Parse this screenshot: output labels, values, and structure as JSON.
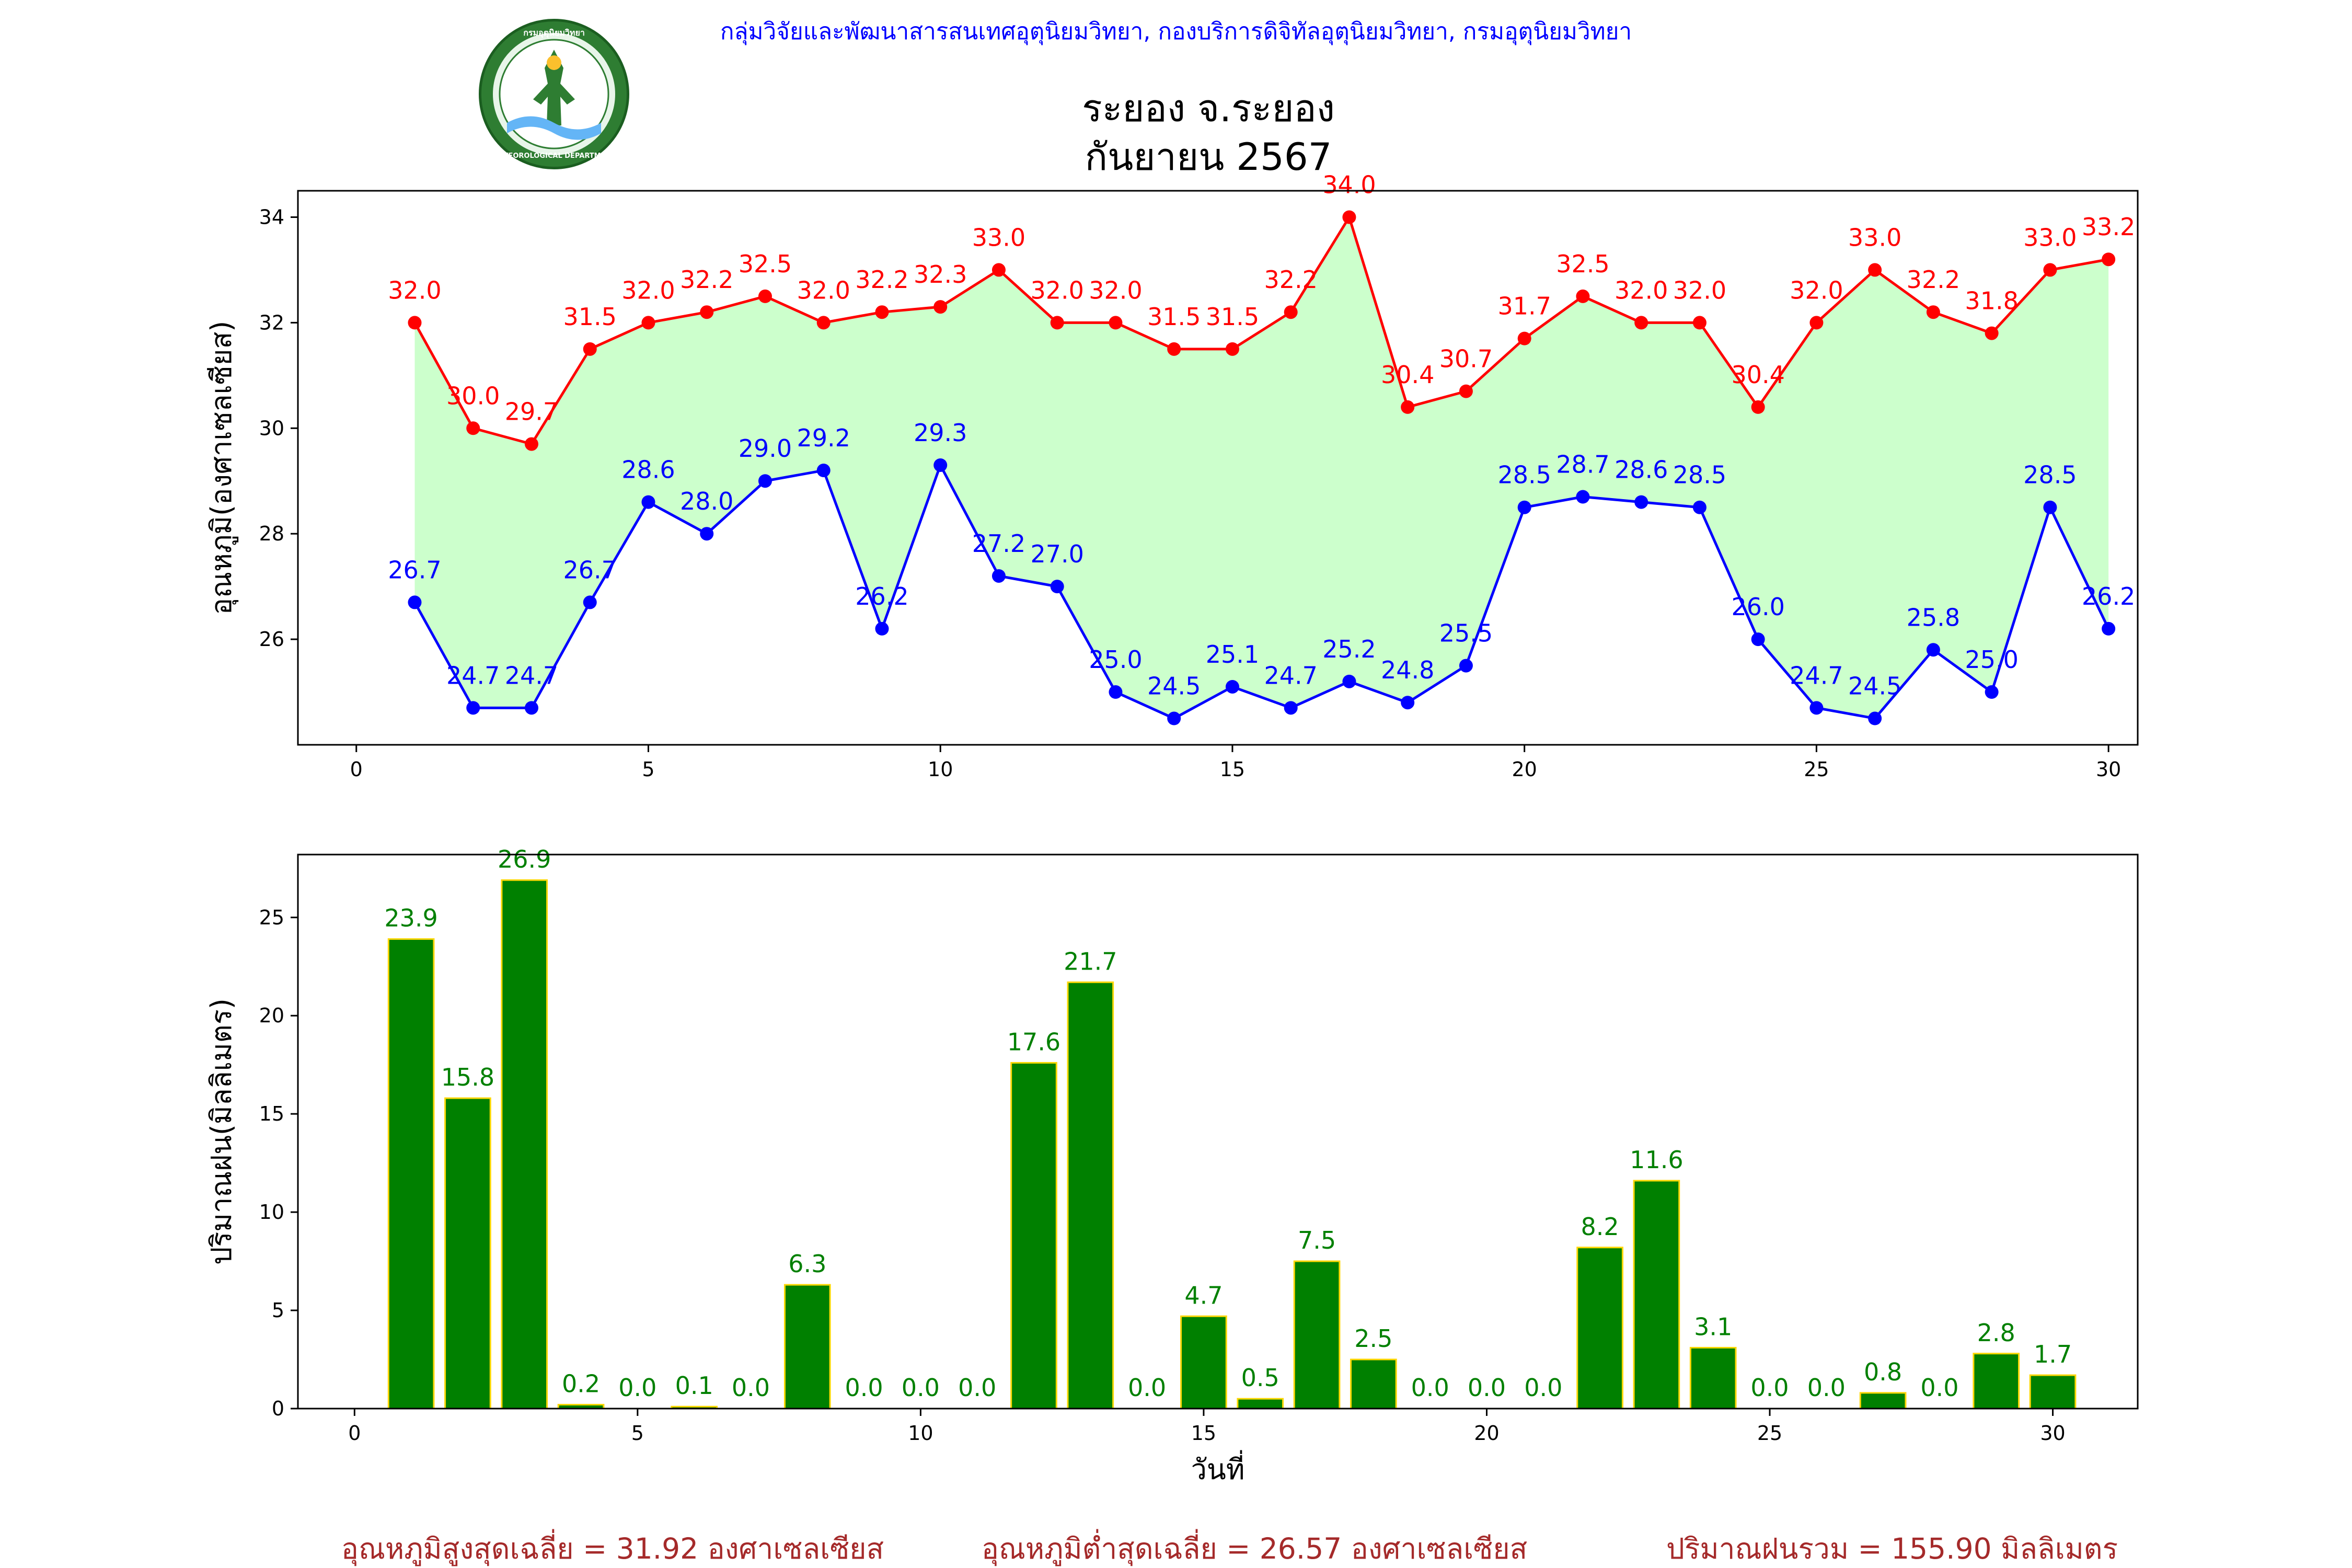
{
  "header": {
    "organization": "กลุ่มวิจัยและพัฒนาสารสนเทศอุตุนิยมวิทยา, กองบริการดิจิทัลอุตุนิยมวิทยา, กรมอุตุนิยมวิทยา",
    "title_line1": "ระยอง จ.ระยอง",
    "title_line2": "กันยายน 2567",
    "logo_text_top": "กรมอุตุนิยมวิทยา",
    "logo_text_bottom": "METEOROLOGICAL DEPARTMENT"
  },
  "colors": {
    "max_line": "#ff0000",
    "min_line": "#0000ff",
    "fill": "#ccffcc",
    "bar_fill": "#008000",
    "bar_edge": "#ffd700",
    "rain_label": "#008000",
    "summary": "#a52a2a",
    "org_text": "#0000ff"
  },
  "chart_data": [
    {
      "type": "line",
      "ylabel": "อุณหภูมิ(องศาเซลเซียส)",
      "xlabel": "",
      "x_ticks": [
        0,
        5,
        10,
        15,
        20,
        25,
        30
      ],
      "y_ticks": [
        26,
        28,
        30,
        32,
        34
      ],
      "xlim": [
        -1,
        30.5
      ],
      "ylim": [
        24,
        34.5
      ],
      "x": [
        1,
        2,
        3,
        4,
        5,
        6,
        7,
        8,
        9,
        10,
        11,
        12,
        13,
        14,
        15,
        16,
        17,
        18,
        19,
        20,
        21,
        22,
        23,
        24,
        25,
        26,
        27,
        28,
        29,
        30
      ],
      "series": [
        {
          "key": "max",
          "values": [
            32.0,
            30.0,
            29.7,
            31.5,
            32.0,
            32.2,
            32.5,
            32.0,
            32.2,
            32.3,
            33.0,
            32.0,
            32.0,
            31.5,
            31.5,
            32.2,
            34.0,
            30.4,
            30.7,
            31.7,
            32.5,
            32.0,
            32.0,
            30.4,
            32.0,
            33.0,
            32.2,
            31.8,
            33.0,
            33.2
          ],
          "labels": [
            "32.0",
            "30.0",
            "29.7",
            "31.5",
            "32.0",
            "32.2",
            "32.5",
            "32.0",
            "32.2",
            "32.3",
            "33.0",
            "32.0",
            "32.0",
            "31.5",
            "31.5",
            "32.2",
            "34.0",
            "30.4",
            "30.7",
            "31.7",
            "32.5",
            "32.0",
            "32.0",
            "30.4",
            "32.0",
            "33.0",
            "32.2",
            "31.8",
            "33.0",
            "33.2"
          ]
        },
        {
          "key": "min",
          "values": [
            26.7,
            24.7,
            24.7,
            26.7,
            28.6,
            28.0,
            29.0,
            29.2,
            26.2,
            29.3,
            27.2,
            27.0,
            25.0,
            24.5,
            25.1,
            24.7,
            25.2,
            24.8,
            25.5,
            28.5,
            28.7,
            28.6,
            28.5,
            26.0,
            24.7,
            24.5,
            25.8,
            25.0,
            28.5,
            26.2
          ],
          "labels": [
            "26.7",
            "24.7",
            "24.7",
            "26.7",
            "28.6",
            "28.0",
            "29.0",
            "29.2",
            "26.2",
            "29.3",
            "27.2",
            "27.0",
            "25.0",
            "24.5",
            "25.1",
            "24.7",
            "25.2",
            "24.8",
            "25.5",
            "28.5",
            "28.7",
            "28.6",
            "28.5",
            "26.0",
            "24.7",
            "24.5",
            "25.8",
            "25.0",
            "28.5",
            "26.2"
          ]
        }
      ],
      "grid": false
    },
    {
      "type": "bar",
      "ylabel": "ปริมาณฝน(มิลลิเมตร)",
      "xlabel": "วันที่",
      "x_ticks": [
        0,
        5,
        10,
        15,
        20,
        25,
        30
      ],
      "y_ticks": [
        0,
        5,
        10,
        15,
        20,
        25
      ],
      "xlim": [
        -1,
        31.5
      ],
      "ylim": [
        0,
        28.2
      ],
      "x": [
        1,
        2,
        3,
        4,
        5,
        6,
        7,
        8,
        9,
        10,
        11,
        12,
        13,
        14,
        15,
        16,
        17,
        18,
        19,
        20,
        21,
        22,
        23,
        24,
        25,
        26,
        27,
        28,
        29,
        30
      ],
      "values": [
        23.9,
        15.8,
        26.9,
        0.2,
        0.0,
        0.1,
        0.0,
        6.3,
        0.0,
        0.0,
        0.0,
        17.6,
        21.7,
        0.0,
        4.7,
        0.5,
        7.5,
        2.5,
        0.0,
        0.0,
        0.0,
        8.2,
        11.6,
        3.1,
        0.0,
        0.0,
        0.8,
        0.0,
        2.8,
        1.7
      ],
      "labels": [
        "23.9",
        "15.8",
        "26.9",
        "0.2",
        "0.0",
        "0.1",
        "0.0",
        "6.3",
        "0.0",
        "0.0",
        "0.0",
        "17.6",
        "21.7",
        "0.0",
        "4.7",
        "0.5",
        "7.5",
        "2.5",
        "0.0",
        "0.0",
        "0.0",
        "8.2",
        "11.6",
        "3.1",
        "0.0",
        "0.0",
        "0.8",
        "0.0",
        "2.8",
        "1.7"
      ],
      "grid": false
    }
  ],
  "summary": {
    "avg_max": "อุณหภูมิสูงสุดเฉลี่ย = 31.92 องศาเซลเซียส",
    "avg_min": "อุณหภูมิต่ำสุดเฉลี่ย = 26.57 องศาเซลเซียส",
    "total_rain": "ปริมาณฝนรวม = 155.90 มิลลิเมตร"
  }
}
